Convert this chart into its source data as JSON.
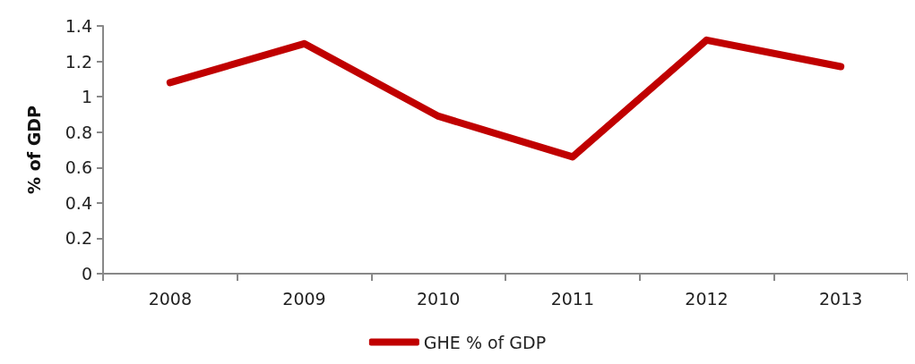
{
  "chart_data": {
    "type": "line",
    "ylabel": "% of GDP",
    "categories": [
      "2008",
      "2009",
      "2010",
      "2011",
      "2012",
      "2013"
    ],
    "series": [
      {
        "name": "GHE % of GDP",
        "color": "#c00000",
        "values": [
          1.08,
          1.3,
          0.89,
          0.66,
          1.32,
          1.17
        ]
      }
    ],
    "ylim": [
      0,
      1.4
    ],
    "yticks": [
      0,
      0.2,
      0.4,
      0.6,
      0.8,
      1,
      1.2,
      1.4
    ],
    "grid": false,
    "legend": "bottom",
    "marker": "none",
    "line_style": "solid"
  }
}
